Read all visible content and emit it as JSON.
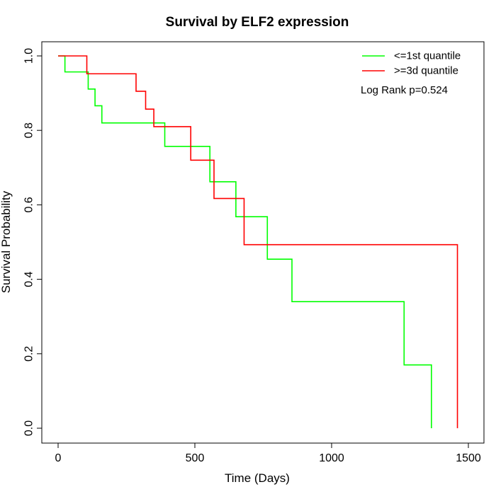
{
  "chart_data": {
    "type": "line",
    "title": "Survival by ELF2 expression",
    "xlabel": "Time (Days)",
    "ylabel": "Survival Probability",
    "xlim": [
      0,
      1500
    ],
    "ylim": [
      0,
      1.0
    ],
    "x_ticks": [
      0,
      500,
      1000,
      1500
    ],
    "x_tick_labels": [
      "0",
      "500",
      "1000",
      "1500"
    ],
    "y_ticks": [
      0.0,
      0.2,
      0.4,
      0.6,
      0.8,
      1.0
    ],
    "y_tick_labels": [
      "0.0",
      "0.2",
      "0.4",
      "0.6",
      "0.8",
      "1.0"
    ],
    "grid": false,
    "legend_position": "top-right",
    "annotation": "Log Rank p=0.524",
    "series": [
      {
        "name": "<=1st quantile",
        "color": "#00ff00",
        "step": true,
        "x": [
          0,
          25,
          110,
          135,
          160,
          390,
          555,
          650,
          765,
          855,
          1265,
          1365,
          1365
        ],
        "y": [
          1.0,
          0.957,
          0.911,
          0.866,
          0.82,
          0.757,
          0.662,
          0.568,
          0.454,
          0.34,
          0.17,
          0.0,
          0.0
        ]
      },
      {
        "name": ">=3d quantile",
        "color": "#ff0000",
        "step": true,
        "x": [
          0,
          105,
          285,
          320,
          350,
          485,
          570,
          680,
          1460,
          1460
        ],
        "y": [
          1.0,
          0.952,
          0.905,
          0.857,
          0.81,
          0.72,
          0.617,
          0.493,
          0.0,
          0.0
        ]
      }
    ]
  }
}
